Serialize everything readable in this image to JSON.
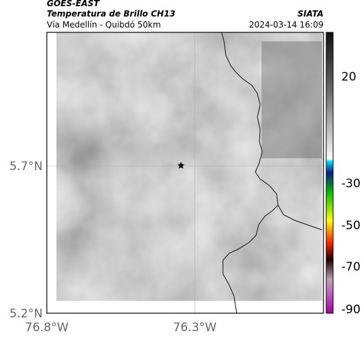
{
  "header": {
    "source": "GOES-EAST",
    "product": "Temperatura de Brillo CH13",
    "location": "Vía Medellín - Quibdó 50km",
    "agency": "SIATA",
    "timestamp": "2024-03-14 16:09"
  },
  "map": {
    "lat_labels": [
      "5.7°N",
      "5.2°N"
    ],
    "lon_labels": [
      "76.8°W",
      "76.3°W"
    ]
  },
  "colorbar": {
    "labels": [
      "20",
      "-30",
      "-50",
      "-70",
      "-90"
    ]
  }
}
